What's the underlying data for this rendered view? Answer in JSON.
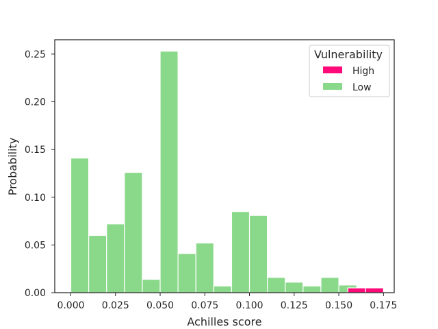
{
  "chart_data": {
    "type": "bar",
    "xlabel": "Achilles score",
    "ylabel": "Probability",
    "xlim": [
      -0.009,
      0.181
    ],
    "ylim": [
      0,
      0.265
    ],
    "bin_width": 0.01,
    "xticks": [
      0.0,
      0.025,
      0.05,
      0.075,
      0.1,
      0.125,
      0.15,
      0.175
    ],
    "xtick_labels": [
      "0.000",
      "0.025",
      "0.050",
      "0.075",
      "0.100",
      "0.125",
      "0.150",
      "0.175"
    ],
    "yticks": [
      0.0,
      0.05,
      0.1,
      0.15,
      0.2,
      0.25
    ],
    "ytick_labels": [
      "0.00",
      "0.05",
      "0.10",
      "0.15",
      "0.20",
      "0.25"
    ],
    "grid": false,
    "legend": {
      "title": "Vulnerability",
      "position": "top-right",
      "entries": [
        "High",
        "Low"
      ]
    },
    "series": [
      {
        "name": "Low",
        "color": "#8ad98a",
        "bins": [
          {
            "x0": 0.0,
            "value": 0.141
          },
          {
            "x0": 0.01,
            "value": 0.06
          },
          {
            "x0": 0.02,
            "value": 0.072
          },
          {
            "x0": 0.03,
            "value": 0.126
          },
          {
            "x0": 0.04,
            "value": 0.014
          },
          {
            "x0": 0.05,
            "value": 0.253
          },
          {
            "x0": 0.06,
            "value": 0.041
          },
          {
            "x0": 0.07,
            "value": 0.052
          },
          {
            "x0": 0.08,
            "value": 0.007
          },
          {
            "x0": 0.09,
            "value": 0.085
          },
          {
            "x0": 0.1,
            "value": 0.081
          },
          {
            "x0": 0.11,
            "value": 0.016
          },
          {
            "x0": 0.12,
            "value": 0.011
          },
          {
            "x0": 0.13,
            "value": 0.007
          },
          {
            "x0": 0.14,
            "value": 0.016
          },
          {
            "x0": 0.15,
            "value": 0.008
          }
        ]
      },
      {
        "name": "High",
        "color": "#ff0a78",
        "bins": [
          {
            "x0": 0.155,
            "value": 0.005
          },
          {
            "x0": 0.165,
            "value": 0.005
          }
        ]
      }
    ]
  }
}
